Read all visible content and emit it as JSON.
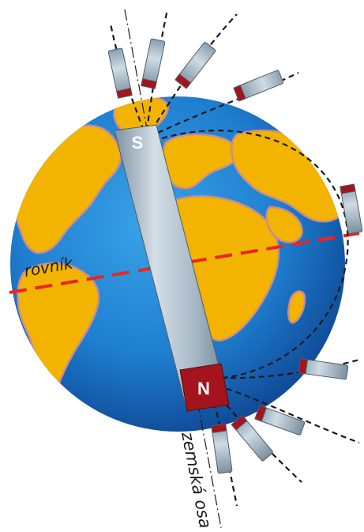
{
  "labels": {
    "equator": "rovník",
    "axis": "zemská osa",
    "pole_south": "S",
    "pole_north": "N"
  },
  "colors": {
    "ocean": "#1f7fd0",
    "ocean_dark": "#0d4d9c",
    "land": "#f2b400",
    "land_edge": "#c98e8e",
    "magnet_body": "#a9bac6",
    "magnet_north": "#a3141c",
    "equator_line": "#e8261f",
    "field_line": "#1a1a1a"
  }
}
